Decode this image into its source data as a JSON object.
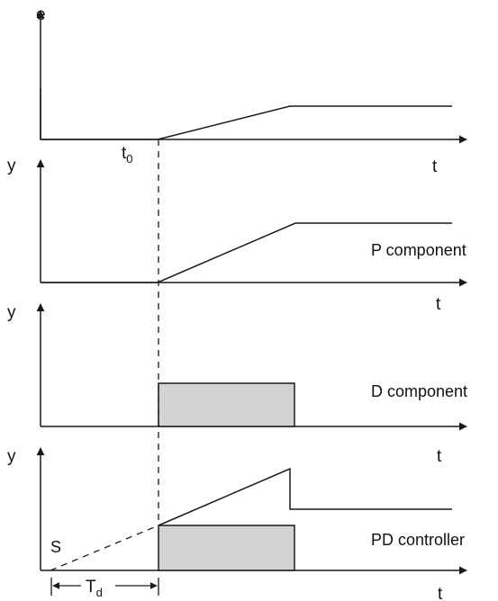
{
  "diagram": {
    "colors": {
      "line": "#1a1a1a",
      "pulse_fill": "#d3d3d3"
    },
    "panel_e": {
      "y_label": "e",
      "x_label": "t",
      "t0_main": "t",
      "t0_sub": "0"
    },
    "panel_p": {
      "y_label": "y",
      "x_label": "t",
      "component_label": "P component"
    },
    "panel_d": {
      "y_label": "y",
      "x_label": "t",
      "component_label": "D component"
    },
    "panel_pd": {
      "y_label": "y",
      "x_label": "t",
      "component_label": "PD controller",
      "s_label": "S",
      "td_main": "T",
      "td_sub": "d"
    }
  }
}
